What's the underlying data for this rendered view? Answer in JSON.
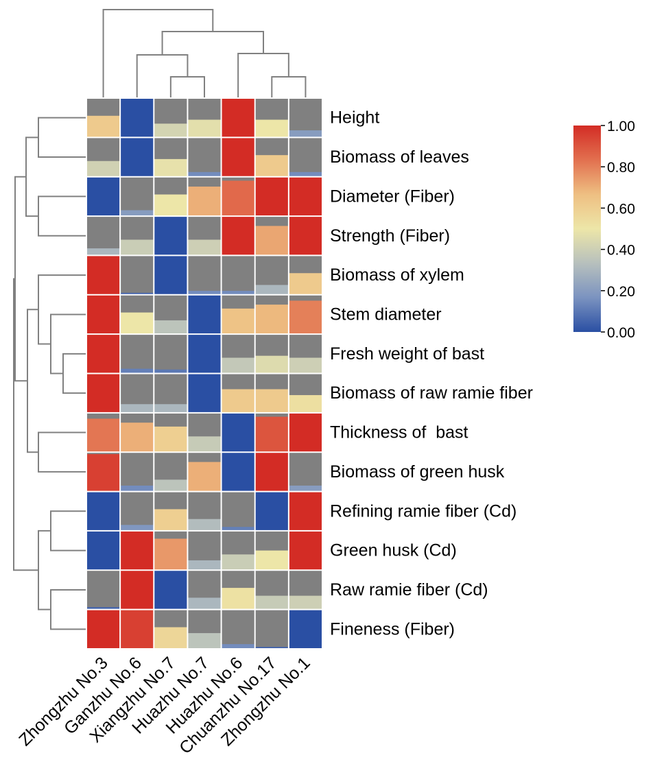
{
  "chart_data": {
    "type": "heatmap",
    "title": "",
    "xlabel": "",
    "ylabel": "",
    "columns": [
      "Zhongzhu No.3",
      "Ganzhu No.6",
      "Xiangzhu No.7",
      "Huazhu No.7",
      "Huazhu No.6",
      "Chuanzhu No.17",
      "Zhongzhu No.1"
    ],
    "rows": [
      "Height",
      "Biomass of leaves",
      "Diameter (Fiber)",
      "Strength (Fiber)",
      "Biomass of xylem",
      "Stem diameter",
      "Fresh weight of bast",
      "Biomass of raw ramie fiber",
      "Thickness of  bast",
      "Biomass of green husk",
      "Refining ramie fiber (Cd)",
      "Green husk (Cd)",
      "Raw ramie fiber (Cd)",
      "Fineness (Fiber)"
    ],
    "values": [
      [
        0.62,
        0.0,
        0.42,
        0.47,
        1.0,
        0.5,
        0.2
      ],
      [
        0.41,
        0.0,
        0.48,
        0.15,
        1.0,
        0.62,
        0.15
      ],
      [
        0.0,
        0.2,
        0.5,
        0.7,
        0.85,
        1.0,
        1.0
      ],
      [
        0.3,
        0.39,
        0.0,
        0.4,
        1.0,
        0.72,
        1.0
      ],
      [
        1.0,
        0.05,
        0.0,
        0.15,
        0.15,
        0.3,
        0.62
      ],
      [
        1.0,
        0.5,
        0.35,
        0.0,
        0.65,
        0.68,
        0.8
      ],
      [
        1.0,
        0.12,
        0.1,
        0.0,
        0.37,
        0.45,
        0.4
      ],
      [
        1.0,
        0.3,
        0.3,
        0.0,
        0.62,
        0.62,
        0.53
      ],
      [
        0.82,
        0.7,
        0.6,
        0.38,
        0.0,
        0.9,
        1.0
      ],
      [
        0.95,
        0.15,
        0.35,
        0.7,
        0.0,
        1.0,
        0.2
      ],
      [
        0.0,
        0.18,
        0.6,
        0.32,
        0.12,
        0.0,
        1.0
      ],
      [
        0.0,
        1.0,
        0.75,
        0.3,
        0.39,
        0.5,
        1.0
      ],
      [
        0.05,
        1.0,
        0.0,
        0.3,
        0.52,
        0.38,
        0.4
      ],
      [
        1.0,
        0.95,
        0.57,
        0.35,
        0.15,
        0.05,
        0.0
      ]
    ],
    "fill_fraction": [
      [
        0.55,
        1.0,
        0.35,
        0.45,
        1.0,
        0.45,
        0.18
      ],
      [
        0.4,
        1.0,
        0.45,
        0.12,
        1.0,
        0.55,
        0.12
      ],
      [
        1.0,
        0.15,
        0.55,
        0.75,
        0.9,
        1.0,
        1.0
      ],
      [
        0.18,
        0.4,
        1.0,
        0.4,
        1.0,
        0.75,
        1.0
      ],
      [
        1.0,
        0.05,
        1.0,
        0.1,
        0.1,
        0.25,
        0.55
      ],
      [
        1.0,
        0.55,
        0.35,
        1.0,
        0.65,
        0.75,
        0.85
      ],
      [
        1.0,
        0.12,
        0.1,
        1.0,
        0.4,
        0.45,
        0.4
      ],
      [
        1.0,
        0.22,
        0.22,
        1.0,
        0.6,
        0.6,
        0.45
      ],
      [
        0.85,
        0.75,
        0.65,
        0.4,
        1.0,
        0.9,
        1.0
      ],
      [
        0.95,
        0.15,
        0.3,
        0.75,
        1.0,
        1.0,
        0.15
      ],
      [
        1.0,
        0.15,
        0.55,
        0.3,
        0.1,
        1.0,
        1.0
      ],
      [
        1.0,
        1.0,
        0.8,
        0.25,
        0.4,
        0.5,
        1.0
      ],
      [
        0.06,
        1.0,
        1.0,
        0.3,
        0.55,
        0.35,
        0.35
      ],
      [
        1.0,
        1.0,
        0.55,
        0.4,
        0.12,
        0.05,
        1.0
      ]
    ],
    "colorbar": {
      "min": 0.0,
      "max": 1.0,
      "ticks": [
        "1.00",
        "0.80",
        "0.60",
        "0.40",
        "0.20",
        "0.00"
      ],
      "colors": [
        "#2a4fa3",
        "#7b93c0",
        "#b7c0bd",
        "#ede6a8",
        "#eebf82",
        "#e2704f",
        "#d32c25"
      ]
    },
    "background_color": "#808080",
    "grid_color": "#ffffff",
    "line_color": "#808080",
    "column_dendrogram": true,
    "row_dendrogram": true
  }
}
